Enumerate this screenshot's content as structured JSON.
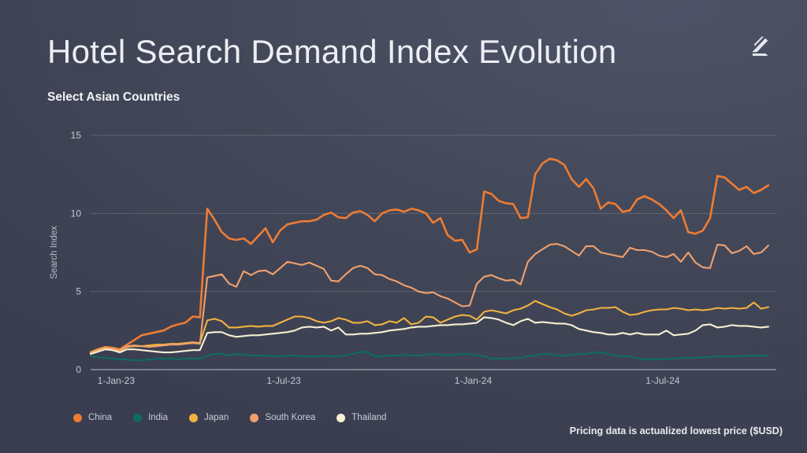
{
  "header": {
    "title": "Hotel Search Demand Index Evolution",
    "subtitle": "Select Asian Countries"
  },
  "footer": {
    "note": "Pricing data is actualized lowest price ($USD)"
  },
  "icons": {
    "brand_logo": "angled-L-brand-mark",
    "brand_logo_color": "#eef0f4"
  },
  "theme": {
    "background_top": "#4e5367",
    "background_mid": "#434859",
    "background_bottom": "#393d4f",
    "title_color": "#eceef3",
    "axis_text_color": "#c4c8d2",
    "grid_color": "rgba(255,255,255,0.16)"
  },
  "chart_data": {
    "type": "line",
    "title": "Hotel Search Demand Index Evolution",
    "subtitle": "Select Asian Countries",
    "xlabel": "",
    "ylabel": "Search Index",
    "ylim": [
      0,
      15
    ],
    "y_ticks": [
      0,
      5,
      10,
      15
    ],
    "x_unit": "week",
    "x_count": 94,
    "grid": "horizontal-only",
    "legend_position": "bottom-left",
    "x_ticks": [
      {
        "label": "1-Jan-23",
        "week": 3.5
      },
      {
        "label": "1-Jul-23",
        "week": 26.5
      },
      {
        "label": "1-Jan-24",
        "week": 52.5
      },
      {
        "label": "1-Jul-24",
        "week": 78.5
      }
    ],
    "series": [
      {
        "name": "China",
        "color": "#ee7c33",
        "values": [
          1.1,
          1.3,
          1.45,
          1.4,
          1.3,
          1.6,
          1.9,
          2.2,
          2.3,
          2.4,
          2.5,
          2.75,
          2.9,
          3.0,
          3.4,
          3.35,
          10.3,
          9.6,
          8.8,
          8.4,
          8.3,
          8.4,
          8.05,
          8.55,
          9.05,
          8.15,
          8.9,
          9.3,
          9.4,
          9.5,
          9.5,
          9.6,
          9.9,
          10.05,
          9.75,
          9.7,
          10.05,
          10.15,
          9.9,
          9.5,
          10.0,
          10.2,
          10.25,
          10.1,
          10.3,
          10.2,
          10.0,
          9.4,
          9.7,
          8.6,
          8.25,
          8.3,
          7.5,
          7.7,
          11.4,
          11.25,
          10.8,
          10.65,
          10.6,
          9.7,
          9.75,
          12.5,
          13.2,
          13.5,
          13.4,
          13.1,
          12.2,
          11.7,
          12.2,
          11.6,
          10.3,
          10.7,
          10.6,
          10.1,
          10.2,
          10.9,
          11.1,
          10.9,
          10.6,
          10.2,
          9.7,
          10.2,
          8.8,
          8.7,
          8.9,
          9.7,
          12.4,
          12.3,
          11.9,
          11.5,
          11.7,
          11.3,
          11.5,
          11.8
        ]
      },
      {
        "name": "India",
        "color": "#0e6b62",
        "values": [
          0.85,
          0.8,
          0.75,
          0.7,
          0.65,
          0.65,
          0.6,
          0.6,
          0.65,
          0.7,
          0.7,
          0.7,
          0.65,
          0.7,
          0.7,
          0.7,
          0.9,
          1.0,
          1.0,
          0.9,
          1.0,
          0.95,
          0.9,
          0.9,
          0.9,
          0.85,
          0.85,
          0.9,
          0.9,
          0.85,
          0.85,
          0.85,
          0.9,
          0.85,
          0.85,
          0.9,
          1.0,
          1.15,
          1.1,
          0.85,
          0.85,
          0.9,
          0.9,
          0.95,
          0.9,
          0.9,
          0.95,
          1.0,
          0.95,
          0.9,
          0.95,
          1.0,
          1.0,
          0.9,
          0.85,
          0.7,
          0.7,
          0.7,
          0.75,
          0.75,
          0.85,
          0.9,
          1.0,
          1.0,
          0.9,
          0.9,
          0.95,
          1.0,
          1.0,
          1.1,
          1.1,
          1.0,
          0.9,
          0.85,
          0.85,
          0.75,
          0.65,
          0.65,
          0.65,
          0.7,
          0.7,
          0.75,
          0.75,
          0.75,
          0.8,
          0.8,
          0.85,
          0.85,
          0.85,
          0.85,
          0.9,
          0.9,
          0.9,
          0.9
        ]
      },
      {
        "name": "Japan",
        "color": "#f2b23e",
        "values": [
          1.1,
          1.3,
          1.4,
          1.35,
          1.2,
          1.45,
          1.5,
          1.5,
          1.55,
          1.6,
          1.6,
          1.65,
          1.65,
          1.7,
          1.75,
          1.7,
          3.15,
          3.25,
          3.1,
          2.7,
          2.7,
          2.75,
          2.8,
          2.75,
          2.8,
          2.8,
          3.0,
          3.2,
          3.4,
          3.4,
          3.3,
          3.1,
          3.0,
          3.1,
          3.3,
          3.2,
          3.0,
          3.0,
          3.1,
          2.85,
          2.9,
          3.1,
          3.0,
          3.3,
          2.9,
          3.0,
          3.4,
          3.35,
          3.0,
          3.2,
          3.4,
          3.5,
          3.45,
          3.2,
          3.7,
          3.8,
          3.7,
          3.6,
          3.8,
          3.9,
          4.1,
          4.4,
          4.2,
          4.0,
          3.85,
          3.6,
          3.45,
          3.6,
          3.8,
          3.85,
          3.95,
          3.95,
          4.0,
          3.7,
          3.5,
          3.55,
          3.7,
          3.8,
          3.85,
          3.85,
          3.95,
          3.9,
          3.8,
          3.85,
          3.8,
          3.85,
          3.95,
          3.9,
          3.95,
          3.9,
          3.95,
          4.3,
          3.9,
          4.0
        ]
      },
      {
        "name": "South Korea",
        "color": "#f0a06d",
        "values": [
          1.05,
          1.25,
          1.4,
          1.35,
          1.25,
          1.5,
          1.55,
          1.5,
          1.45,
          1.5,
          1.55,
          1.6,
          1.6,
          1.65,
          1.7,
          1.65,
          5.9,
          6.0,
          6.1,
          5.5,
          5.3,
          6.3,
          6.05,
          6.3,
          6.35,
          6.1,
          6.5,
          6.9,
          6.8,
          6.7,
          6.85,
          6.65,
          6.45,
          5.7,
          5.65,
          6.1,
          6.5,
          6.65,
          6.5,
          6.1,
          6.05,
          5.8,
          5.65,
          5.4,
          5.25,
          5.0,
          4.9,
          4.95,
          4.7,
          4.55,
          4.3,
          4.05,
          4.1,
          5.5,
          5.95,
          6.05,
          5.85,
          5.7,
          5.75,
          5.45,
          6.9,
          7.4,
          7.7,
          8.0,
          8.05,
          7.9,
          7.6,
          7.3,
          7.9,
          7.9,
          7.5,
          7.4,
          7.3,
          7.2,
          7.8,
          7.65,
          7.65,
          7.55,
          7.3,
          7.2,
          7.4,
          6.9,
          7.5,
          6.85,
          6.55,
          6.5,
          8.0,
          7.95,
          7.45,
          7.6,
          7.9,
          7.4,
          7.5,
          7.95
        ]
      },
      {
        "name": "Thailand",
        "color": "#f6efd2",
        "values": [
          1.0,
          1.15,
          1.3,
          1.25,
          1.1,
          1.3,
          1.3,
          1.25,
          1.2,
          1.15,
          1.1,
          1.1,
          1.15,
          1.2,
          1.25,
          1.25,
          2.35,
          2.4,
          2.4,
          2.2,
          2.1,
          2.15,
          2.2,
          2.2,
          2.25,
          2.3,
          2.35,
          2.4,
          2.5,
          2.7,
          2.75,
          2.7,
          2.75,
          2.5,
          2.7,
          2.25,
          2.25,
          2.3,
          2.3,
          2.35,
          2.4,
          2.5,
          2.55,
          2.6,
          2.7,
          2.75,
          2.75,
          2.8,
          2.85,
          2.85,
          2.9,
          2.9,
          2.95,
          3.0,
          3.35,
          3.3,
          3.2,
          3.0,
          2.85,
          3.1,
          3.25,
          3.0,
          3.05,
          3.0,
          2.95,
          2.95,
          2.85,
          2.6,
          2.5,
          2.4,
          2.35,
          2.25,
          2.25,
          2.35,
          2.25,
          2.35,
          2.25,
          2.25,
          2.25,
          2.5,
          2.2,
          2.25,
          2.3,
          2.5,
          2.85,
          2.9,
          2.7,
          2.75,
          2.85,
          2.8,
          2.8,
          2.75,
          2.7,
          2.75
        ]
      }
    ]
  }
}
